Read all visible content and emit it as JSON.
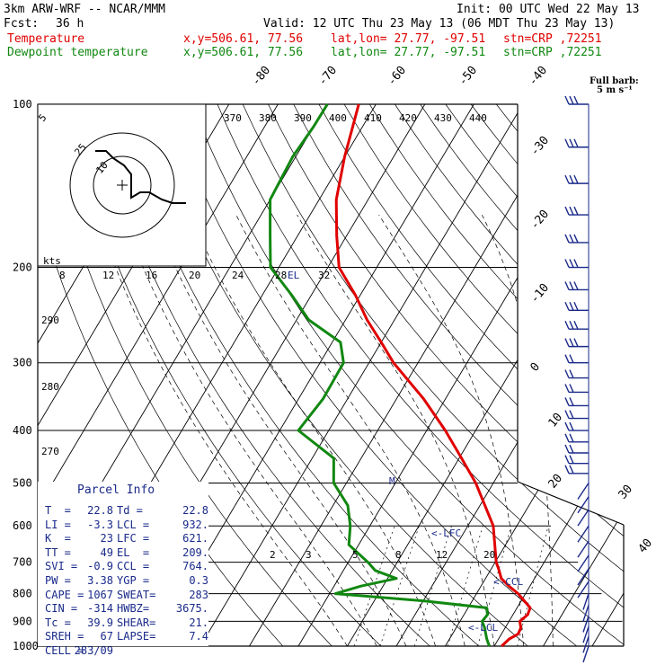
{
  "header": {
    "model": "3km ARW-WRF -- NCAR/MMM",
    "init": "Init: 00 UTC Wed 22 May 13",
    "fcst_label": "Fcst:",
    "fcst_value": "36 h",
    "valid": "Valid: 12 UTC Thu 23 May 13 (06 MDT Thu 23 May 13)",
    "temp_label": "Temperature",
    "dew_label": "Dewpoint temperature",
    "xy": "x,y=506.61, 77.56",
    "latlon": "lat,lon= 27.77, -97.51",
    "stn": "stn=CRP ,72251",
    "barb_title_1": "Full barb:",
    "barb_title_2": "5 m s⁻¹"
  },
  "parcel_info": {
    "title": "Parcel Info",
    "rows": [
      [
        "T  =",
        "22.8",
        "Td =",
        "22.8"
      ],
      [
        "LI =",
        "-3.3",
        "LCL =",
        "932."
      ],
      [
        "K  =",
        "23",
        "LFC =",
        "621."
      ],
      [
        "TT =",
        "49",
        "EL  =",
        "209."
      ],
      [
        "SVI =",
        "-0.9",
        "CCL =",
        "764."
      ],
      [
        "PW =",
        "3.38",
        "YGP =",
        "0.3"
      ],
      [
        "CAPE =",
        "1067",
        "SWEAT=",
        "283"
      ],
      [
        "CIN =",
        "-314",
        "HWBZ=",
        "3675."
      ],
      [
        "Tc =",
        "39.9",
        "SHEAR=",
        "21."
      ],
      [
        "SREH =",
        "67",
        "LAPSE=",
        "7.4"
      ],
      [
        "CELL =",
        "283/09",
        "",
        ""
      ]
    ]
  },
  "markers": {
    "lfc": "<-LFC",
    "ccl": "<-CCL",
    "lcl": "<-LCL",
    "el": "EL",
    "m": "M"
  },
  "hodograph": {
    "units_label": "kts",
    "ring_labels": [
      "5",
      "10",
      "25"
    ]
  },
  "chart_data": {
    "type": "line",
    "title": "",
    "xlabel": "",
    "ylabel": "",
    "pressure_levels": [
      100,
      200,
      300,
      400,
      500,
      600,
      700,
      800,
      900,
      1000
    ],
    "isotherm_labels": [
      "-80",
      "-70",
      "-60",
      "-50",
      "-40",
      "-30",
      "-20",
      "-10",
      "0",
      "10",
      "20",
      "30",
      "40"
    ],
    "theta_labels_top": [
      "370",
      "380",
      "390",
      "400",
      "410",
      "420",
      "430",
      "440"
    ],
    "theta_labels_left": [
      "290",
      "280",
      "270"
    ],
    "hodo_speed_labels": [
      "8",
      "12",
      "16",
      "20",
      "24",
      "28",
      "32"
    ],
    "mixing_ratio_labels": [
      "2",
      "3",
      "5",
      "8",
      "12",
      "20"
    ],
    "series": [
      {
        "name": "Temperature",
        "color": "#e00000",
        "points": [
          [
            1000,
            21.5
          ],
          [
            970,
            22.2
          ],
          [
            950,
            23.4
          ],
          [
            925,
            23.2
          ],
          [
            900,
            22.2
          ],
          [
            875,
            23.0
          ],
          [
            850,
            22.7
          ],
          [
            800,
            18.5
          ],
          [
            775,
            15.7
          ],
          [
            750,
            13.2
          ],
          [
            725,
            11.8
          ],
          [
            700,
            10.2
          ],
          [
            650,
            7.8
          ],
          [
            600,
            5.2
          ],
          [
            550,
            1.0
          ],
          [
            500,
            -3.6
          ],
          [
            450,
            -9.5
          ],
          [
            400,
            -16.2
          ],
          [
            350,
            -24.4
          ],
          [
            300,
            -35.0
          ],
          [
            275,
            -40.0
          ],
          [
            250,
            -45.6
          ],
          [
            225,
            -51.0
          ],
          [
            200,
            -57.7
          ],
          [
            175,
            -62.0
          ],
          [
            150,
            -66.5
          ],
          [
            125,
            -70.0
          ],
          [
            110,
            -72.0
          ],
          [
            100,
            -73.5
          ]
        ]
      },
      {
        "name": "Dewpoint temperature",
        "color": "#118811",
        "points": [
          [
            1000,
            19.0
          ],
          [
            970,
            17.6
          ],
          [
            950,
            16.8
          ],
          [
            925,
            15.8
          ],
          [
            900,
            14.5
          ],
          [
            875,
            14.8
          ],
          [
            850,
            13.8
          ],
          [
            825,
            0.0
          ],
          [
            800,
            -18.8
          ],
          [
            775,
            -14.5
          ],
          [
            750,
            -8.2
          ],
          [
            725,
            -13.5
          ],
          [
            700,
            -16.0
          ],
          [
            650,
            -22.0
          ],
          [
            600,
            -24.0
          ],
          [
            550,
            -27.0
          ],
          [
            500,
            -32.6
          ],
          [
            450,
            -35.6
          ],
          [
            400,
            -46.2
          ],
          [
            350,
            -45.0
          ],
          [
            300,
            -45.2
          ],
          [
            275,
            -48.3
          ],
          [
            250,
            -57.5
          ],
          [
            225,
            -64.0
          ],
          [
            200,
            -71.7
          ],
          [
            175,
            -75.6
          ],
          [
            150,
            -80.0
          ],
          [
            125,
            -80.6
          ],
          [
            110,
            -80.0
          ],
          [
            100,
            -79.9
          ]
        ]
      }
    ],
    "wind_barbs_pressure": [
      100,
      120,
      140,
      160,
      180,
      200,
      220,
      240,
      260,
      280,
      300,
      320,
      340,
      360,
      380,
      400,
      420,
      440,
      460,
      480,
      500,
      530,
      560,
      600,
      640,
      680,
      720,
      760,
      800,
      840,
      880,
      920,
      960,
      1000
    ],
    "ylim": [
      1000,
      100
    ],
    "grid": true,
    "legend": "top-left"
  }
}
